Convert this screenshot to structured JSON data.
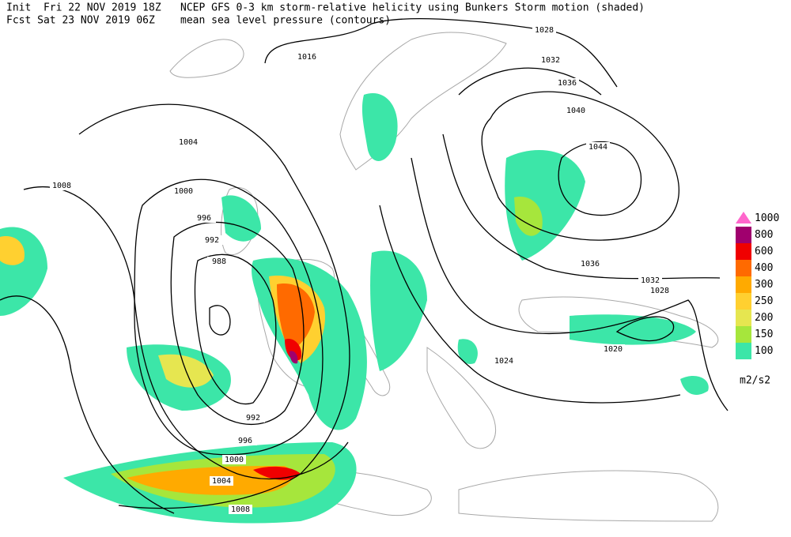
{
  "header": {
    "init": "Init  Fri 22 NOV 2019 18Z",
    "forecast": "Fcst Sat 23 NOV 2019 06Z",
    "title": "NCEP GFS 0-3 km storm-relative helicity using Bunkers Storm motion (shaded)",
    "subtitle": "mean sea level pressure (contours)"
  },
  "legend": {
    "levels": [
      100,
      150,
      200,
      250,
      300,
      400,
      600,
      800,
      1000
    ],
    "colors": [
      "#3ce6a8",
      "#a6e63c",
      "#e6e650",
      "#ffd030",
      "#ffaa00",
      "#ff6a00",
      "#f00000",
      "#a0006e",
      "#ff66cc"
    ],
    "units": "m2/s2"
  },
  "contour_labels": [
    1028,
    1016,
    1032,
    1036,
    1040,
    1044,
    1004,
    1008,
    1000,
    996,
    992,
    988,
    1036,
    1032,
    1028,
    1024,
    1020,
    992,
    996,
    1000,
    1004,
    1008
  ]
}
